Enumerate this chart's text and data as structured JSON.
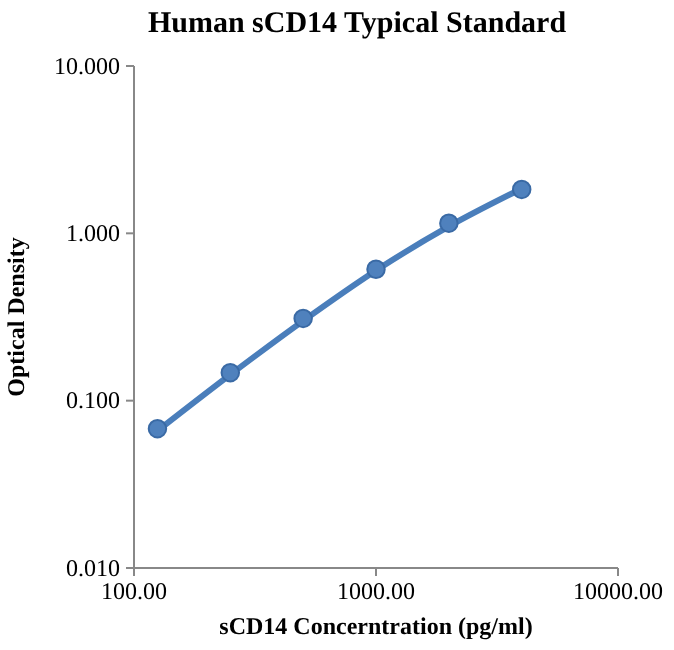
{
  "chart_data": {
    "type": "scatter",
    "title": "Human sCD14 Typical Standard",
    "xlabel": "sCD14 Concerntration (pg/ml)",
    "ylabel": "Optical Density",
    "log": "xy",
    "grid": false,
    "marker": "circle",
    "xlim": [
      100,
      10000
    ],
    "xticks": [
      {
        "value": 100,
        "label": "100.00"
      },
      {
        "value": 1000,
        "label": "1000.00"
      },
      {
        "value": 10000,
        "label": "10000.00"
      }
    ],
    "ylim": [
      0.01,
      10
    ],
    "yticks": [
      {
        "value": 0.01,
        "label": "0.010"
      },
      {
        "value": 0.1,
        "label": "0.100"
      },
      {
        "value": 1,
        "label": "1.000"
      },
      {
        "value": 10,
        "label": "10.000"
      }
    ],
    "series": [
      {
        "type": "line",
        "marker": "none",
        "color": "#4a7ebb",
        "x": [
          125,
          250,
          500,
          1000,
          2000,
          4000
        ],
        "values": [
          0.066,
          0.143,
          0.3,
          0.6,
          1.1,
          1.85
        ]
      },
      {
        "color": "#4f81bd",
        "x": [
          125,
          250,
          500,
          1000,
          2000,
          4000
        ],
        "values": [
          0.068,
          0.147,
          0.31,
          0.61,
          1.15,
          1.83
        ]
      }
    ]
  }
}
